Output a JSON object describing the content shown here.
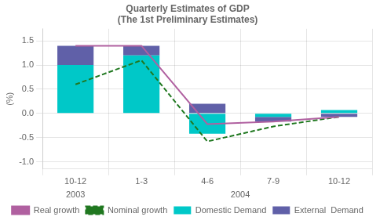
{
  "chart_data": {
    "type": "bar",
    "title": "Quarterly Estimates of GDP\n(The 1st Preliminary Estimates)",
    "ylabel": "(%)",
    "categories": [
      "10-12",
      "1-3",
      "4-6",
      "7-9",
      "10-12"
    ],
    "series": [
      {
        "name": "Domestic Demand",
        "type": "bar",
        "color": "#00c8c8",
        "values": [
          1.0,
          1.2,
          -0.42,
          -0.07,
          0.07
        ]
      },
      {
        "name": "External  Demand",
        "type": "bar",
        "color": "#6060a8",
        "values": [
          0.4,
          0.2,
          0.2,
          -0.1,
          -0.07
        ]
      },
      {
        "name": "Real growth",
        "type": "line",
        "color": "#b060a0",
        "line_style": "solid",
        "values": [
          1.4,
          1.4,
          -0.22,
          -0.17,
          -0.07
        ]
      },
      {
        "name": "Nominal growth",
        "type": "line",
        "color": "#207820",
        "line_style": "dashed",
        "values": [
          0.6,
          1.1,
          -0.58,
          -0.27,
          -0.07
        ]
      }
    ],
    "stacked": true,
    "ylim": [
      -1.15,
      1.75
    ],
    "yticks": [
      {
        "value": -1.0,
        "label": "-1.0"
      },
      -0.5,
      {
        "value": 0.0,
        "label": "0.0"
      },
      0.5,
      {
        "value": 1.0,
        "label": "1.0"
      },
      1.5
    ],
    "grid": true,
    "legend": "bottom",
    "annotations": [
      {
        "text": "2003",
        "x": 0
      },
      {
        "text": "2004",
        "x": 2.5
      }
    ]
  }
}
